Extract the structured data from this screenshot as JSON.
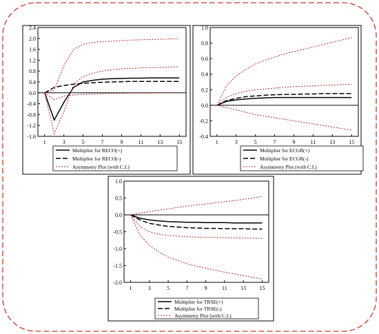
{
  "colors": {
    "border": "#c0392b",
    "ci": "#b22222",
    "line": "#000000"
  },
  "chart_data": [
    {
      "type": "line",
      "xlim": [
        0.3,
        15.7
      ],
      "ylim": [
        -1.6,
        2.4
      ],
      "xticks": [
        "1",
        "3",
        "5",
        "7",
        "9",
        "11",
        "13",
        "15"
      ],
      "yticks": [
        "2.4",
        "2.0",
        "1.6",
        "1.2",
        "0.8",
        "0.4",
        "0.0",
        "-0.4",
        "-0.8",
        "-1.2",
        "-1.6"
      ],
      "x": [
        1,
        2,
        3,
        4,
        5,
        6,
        7,
        8,
        9,
        10,
        11,
        12,
        13,
        14,
        15
      ],
      "series": [
        {
          "name": "Multiplier for RECO(+)",
          "style": "solid",
          "values": [
            0,
            -1.0,
            -0.35,
            0.2,
            0.4,
            0.46,
            0.5,
            0.52,
            0.53,
            0.54,
            0.54,
            0.55,
            0.55,
            0.55,
            0.55
          ]
        },
        {
          "name": "Multiplier for RECO(-)",
          "style": "dashed",
          "values": [
            0,
            0.2,
            0.27,
            0.32,
            0.35,
            0.37,
            0.39,
            0.4,
            0.41,
            0.42,
            0.42,
            0.42,
            0.42,
            0.42,
            0.42
          ]
        },
        {
          "name": "Asymmetry Plot (with C.I.)",
          "style": "ci",
          "values": [
            0,
            -1.5,
            -0.7,
            0.3,
            0.6,
            0.72,
            0.8,
            0.85,
            0.88,
            0.9,
            0.92,
            0.93,
            0.94,
            0.95,
            0.96
          ]
        },
        {
          "name": "",
          "style": "ci",
          "values": [
            0,
            0.1,
            1.0,
            1.6,
            1.78,
            1.85,
            1.88,
            1.9,
            1.92,
            1.94,
            1.95,
            1.96,
            1.97,
            1.98,
            1.99
          ]
        },
        {
          "name": "",
          "style": "ci",
          "values": [
            0,
            -0.25,
            -0.12,
            -0.08,
            -0.05,
            -0.04,
            -0.03,
            -0.02,
            -0.02,
            -0.01,
            -0.01,
            -0.01,
            0.0,
            0.0,
            0.0
          ]
        }
      ],
      "legend": [
        "Multiplier for RECO(+)",
        "Multiplier for RECO(-)",
        "Asymmetry Plot (with C.I.)"
      ]
    },
    {
      "type": "line",
      "xlim": [
        0.3,
        15.7
      ],
      "ylim": [
        -0.4,
        1.0
      ],
      "xticks": [
        "1",
        "3",
        "5",
        "7",
        "9",
        "11",
        "13",
        "15"
      ],
      "yticks": [
        "1.0",
        "0.8",
        "0.6",
        "0.4",
        "0.2",
        "0.0",
        "-0.2",
        "-0.4"
      ],
      "x": [
        1,
        2,
        3,
        4,
        5,
        6,
        7,
        8,
        9,
        10,
        11,
        12,
        13,
        14,
        15
      ],
      "series": [
        {
          "name": "Multiplier for ECGR(+)",
          "style": "solid",
          "values": [
            0,
            0.05,
            0.07,
            0.08,
            0.09,
            0.095,
            0.1,
            0.1,
            0.1,
            0.1,
            0.1,
            0.1,
            0.1,
            0.1,
            0.1
          ]
        },
        {
          "name": "Multiplier for ECGR(-)",
          "style": "dashed",
          "values": [
            0,
            0.06,
            0.09,
            0.11,
            0.12,
            0.13,
            0.135,
            0.14,
            0.14,
            0.145,
            0.145,
            0.15,
            0.15,
            0.15,
            0.15
          ]
        },
        {
          "name": "Asymmetry Plot (with C.I.)",
          "style": "ci",
          "values": [
            0,
            0.1,
            0.15,
            0.18,
            0.2,
            0.21,
            0.22,
            0.23,
            0.24,
            0.245,
            0.25,
            0.255,
            0.26,
            0.265,
            0.27
          ]
        },
        {
          "name": "",
          "style": "ci",
          "values": [
            0,
            0.25,
            0.38,
            0.46,
            0.53,
            0.58,
            0.62,
            0.66,
            0.69,
            0.72,
            0.75,
            0.78,
            0.81,
            0.84,
            0.87
          ]
        },
        {
          "name": "",
          "style": "ci",
          "values": [
            0,
            -0.03,
            -0.06,
            -0.09,
            -0.12,
            -0.14,
            -0.16,
            -0.18,
            -0.2,
            -0.22,
            -0.24,
            -0.26,
            -0.28,
            -0.3,
            -0.32
          ]
        }
      ],
      "legend": [
        "Multiplier for ECGR(+)",
        "Multiplier for ECGR(-)",
        "Asymmetry Plot (with C.I.)"
      ]
    },
    {
      "type": "line",
      "xlim": [
        0.3,
        15.7
      ],
      "ylim": [
        -2.0,
        1.0
      ],
      "xticks": [
        "1",
        "3",
        "5",
        "7",
        "9",
        "11",
        "13",
        "15"
      ],
      "yticks": [
        "1.0",
        "0.5",
        "0.0",
        "-0.5",
        "-1.0",
        "-1.5",
        "-2.0"
      ],
      "x": [
        1,
        2,
        3,
        4,
        5,
        6,
        7,
        8,
        9,
        10,
        11,
        12,
        13,
        14,
        15
      ],
      "series": [
        {
          "name": "Multiplier for TRSE(+)",
          "style": "solid",
          "values": [
            0,
            -0.1,
            -0.15,
            -0.18,
            -0.2,
            -0.21,
            -0.22,
            -0.22,
            -0.23,
            -0.23,
            -0.23,
            -0.24,
            -0.24,
            -0.24,
            -0.24
          ]
        },
        {
          "name": "Multiplier for TRSE(-)",
          "style": "dashed",
          "values": [
            0,
            -0.15,
            -0.25,
            -0.3,
            -0.34,
            -0.36,
            -0.38,
            -0.39,
            -0.4,
            -0.4,
            -0.41,
            -0.41,
            -0.41,
            -0.42,
            -0.42
          ]
        },
        {
          "name": "Asymmetry Plot (with C.I.)",
          "style": "ci",
          "values": [
            0,
            -0.35,
            -0.5,
            -0.57,
            -0.61,
            -0.63,
            -0.65,
            -0.66,
            -0.67,
            -0.67,
            -0.68,
            -0.68,
            -0.69,
            -0.69,
            -0.7
          ]
        },
        {
          "name": "",
          "style": "ci",
          "values": [
            0,
            0.05,
            0.1,
            0.14,
            0.18,
            0.22,
            0.26,
            0.29,
            0.32,
            0.36,
            0.39,
            0.42,
            0.46,
            0.5,
            0.55
          ]
        },
        {
          "name": "",
          "style": "ci",
          "values": [
            0,
            -0.6,
            -0.9,
            -1.1,
            -1.25,
            -1.35,
            -1.45,
            -1.52,
            -1.58,
            -1.64,
            -1.7,
            -1.75,
            -1.8,
            -1.85,
            -1.9
          ]
        }
      ],
      "legend": [
        "Multiplier for TRSE(+)",
        "Multiplier for TRSE(-)",
        "Asymmetry Plot (with C.I.)"
      ]
    }
  ]
}
